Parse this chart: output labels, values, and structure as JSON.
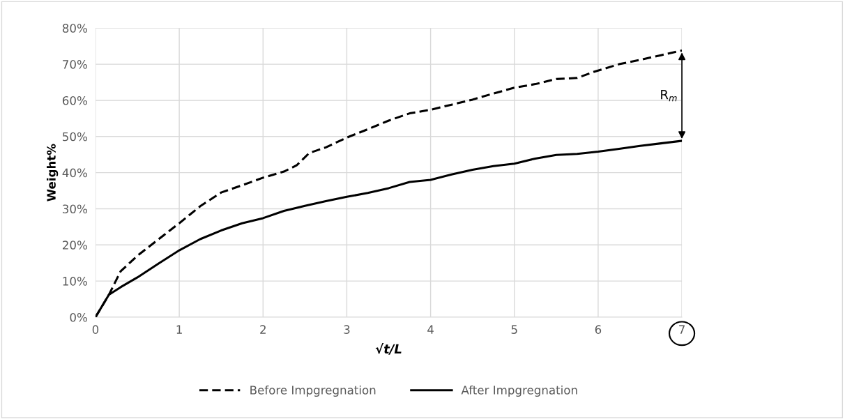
{
  "chart_data": {
    "type": "line",
    "xlabel": "√t/L",
    "ylabel": "Weight%",
    "xlim": [
      0,
      7
    ],
    "xticks": [
      0,
      1,
      2,
      3,
      4,
      5,
      6,
      7
    ],
    "ylim": [
      0,
      80
    ],
    "yticks": [
      {
        "value": 0,
        "label": "0%"
      },
      {
        "value": 10,
        "label": "10%"
      },
      {
        "value": 20,
        "label": "20%"
      },
      {
        "value": 30,
        "label": "30%"
      },
      {
        "value": 40,
        "label": "40%"
      },
      {
        "value": 50,
        "label": "50%"
      },
      {
        "value": 60,
        "label": "60%"
      },
      {
        "value": 70,
        "label": "70%"
      },
      {
        "value": 80,
        "label": "80%"
      }
    ],
    "grid": true,
    "legend": "bottom",
    "marker": "none",
    "series": [
      {
        "name": "Before Impgregnation",
        "color": "#000000",
        "line_style": "dashed",
        "x": [
          0,
          0.16,
          0.3,
          0.5,
          0.75,
          1.0,
          1.25,
          1.5,
          1.75,
          2.0,
          2.25,
          2.4,
          2.55,
          2.75,
          3.0,
          3.25,
          3.5,
          3.75,
          4.0,
          4.25,
          4.5,
          4.75,
          5.0,
          5.25,
          5.5,
          5.75,
          5.95,
          6.25,
          6.5,
          6.75,
          7.0
        ],
        "values": [
          0,
          6.2,
          12.7,
          17,
          21.5,
          26,
          30.7,
          34.5,
          36.5,
          38.6,
          40.3,
          42,
          45.4,
          47,
          49.7,
          52,
          54.4,
          56.4,
          57.4,
          58.8,
          60.2,
          61.9,
          63.5,
          64.5,
          65.9,
          66.2,
          67.9,
          70,
          71.2,
          72.5,
          73.8
        ]
      },
      {
        "name": "After Impgregnation",
        "color": "#000000",
        "line_style": "solid",
        "x": [
          0,
          0.16,
          0.3,
          0.5,
          0.75,
          1.0,
          1.25,
          1.5,
          1.75,
          2.0,
          2.25,
          2.5,
          2.75,
          3.0,
          3.25,
          3.5,
          3.75,
          4.0,
          4.25,
          4.5,
          4.75,
          5.0,
          5.25,
          5.5,
          5.75,
          6.0,
          6.25,
          6.5,
          6.75,
          7.0
        ],
        "values": [
          0,
          6.2,
          8.3,
          11,
          14.8,
          18.5,
          21.6,
          24,
          26,
          27.4,
          29.4,
          30.8,
          32.1,
          33.3,
          34.4,
          35.7,
          37.4,
          38,
          39.5,
          40.8,
          41.8,
          42.5,
          43.9,
          44.9,
          45.2,
          45.8,
          46.6,
          47.4,
          48.1,
          48.8
        ]
      }
    ],
    "annotations": [
      "R$_{m}$"
    ]
  }
}
